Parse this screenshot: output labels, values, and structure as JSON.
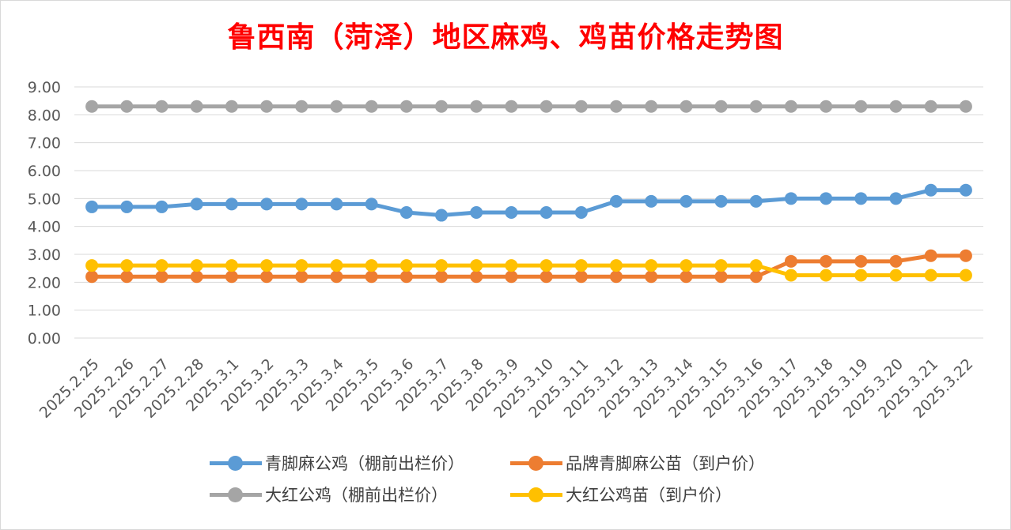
{
  "chart_data": {
    "type": "line",
    "title": "鲁西南（菏泽）地区麻鸡、鸡苗价格走势图",
    "ylim": [
      0,
      9
    ],
    "yticks": [
      "0.00",
      "1.00",
      "2.00",
      "3.00",
      "4.00",
      "5.00",
      "6.00",
      "7.00",
      "8.00",
      "9.00"
    ],
    "grid": true,
    "legend_position": "bottom",
    "categories": [
      "2025.2.25",
      "2025.2.26",
      "2025.2.27",
      "2025.2.28",
      "2025.3.1",
      "2025.3.2",
      "2025.3.3",
      "2025.3.4",
      "2025.3.5",
      "2025.3.6",
      "2025.3.7",
      "2025.3.8",
      "2025.3.9",
      "2025.3.10",
      "2025.3.11",
      "2025.3.12",
      "2025.3.13",
      "2025.3.14",
      "2025.3.15",
      "2025.3.16",
      "2025.3.17",
      "2025.3.18",
      "2025.3.19",
      "2025.3.20",
      "2025.3.21",
      "2025.3.22"
    ],
    "series": [
      {
        "name": "青脚麻公鸡（棚前出栏价）",
        "color": "#5b9bd5",
        "values": [
          4.7,
          4.7,
          4.7,
          4.8,
          4.8,
          4.8,
          4.8,
          4.8,
          4.8,
          4.5,
          4.4,
          4.5,
          4.5,
          4.5,
          4.5,
          4.9,
          4.9,
          4.9,
          4.9,
          4.9,
          5.0,
          5.0,
          5.0,
          5.0,
          5.3,
          5.3
        ]
      },
      {
        "name": "品牌青脚麻公苗（到户价）",
        "color": "#ed7d31",
        "values": [
          2.2,
          2.2,
          2.2,
          2.2,
          2.2,
          2.2,
          2.2,
          2.2,
          2.2,
          2.2,
          2.2,
          2.2,
          2.2,
          2.2,
          2.2,
          2.2,
          2.2,
          2.2,
          2.2,
          2.2,
          2.75,
          2.75,
          2.75,
          2.75,
          2.95,
          2.95
        ]
      },
      {
        "name": "大红公鸡（棚前出栏价）",
        "color": "#a5a5a5",
        "values": [
          8.3,
          8.3,
          8.3,
          8.3,
          8.3,
          8.3,
          8.3,
          8.3,
          8.3,
          8.3,
          8.3,
          8.3,
          8.3,
          8.3,
          8.3,
          8.3,
          8.3,
          8.3,
          8.3,
          8.3,
          8.3,
          8.3,
          8.3,
          8.3,
          8.3,
          8.3
        ]
      },
      {
        "name": "大红公鸡苗（到户价）",
        "color": "#ffc000",
        "values": [
          2.6,
          2.6,
          2.6,
          2.6,
          2.6,
          2.6,
          2.6,
          2.6,
          2.6,
          2.6,
          2.6,
          2.6,
          2.6,
          2.6,
          2.6,
          2.6,
          2.6,
          2.6,
          2.6,
          2.6,
          2.25,
          2.25,
          2.25,
          2.25,
          2.25,
          2.25
        ]
      }
    ]
  }
}
